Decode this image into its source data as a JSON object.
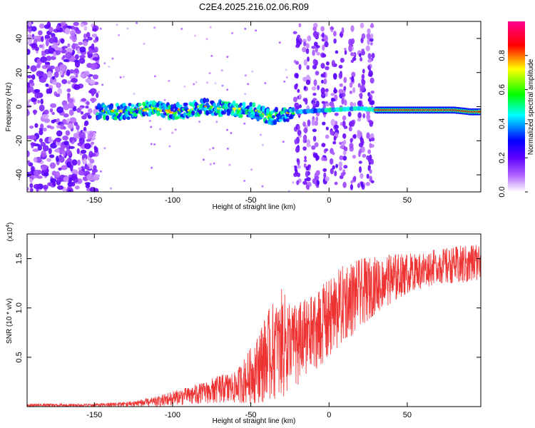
{
  "title": "C2E4.2025.216.02.06.R09",
  "chart_data": [
    {
      "type": "heatmap",
      "xlabel": "Height of straight line (km)",
      "ylabel": "Frequency (Hz)",
      "xlim": [
        -193,
        97
      ],
      "ylim": [
        -50,
        50
      ],
      "xticks": [
        -150,
        -100,
        -50,
        0,
        50
      ],
      "yticks": [
        -40,
        -20,
        0,
        20,
        40
      ],
      "colorbar": {
        "label": "Normalized spectral amplitude",
        "range": [
          0.0,
          1.0
        ],
        "ticks": [
          0.0,
          0.2,
          0.4,
          0.6,
          0.8
        ],
        "tick_labels": [
          "0.0",
          "0.2",
          "0.4",
          "0.6",
          "0.8"
        ],
        "colors": [
          "#ffffff",
          "#7f00ff",
          "#0000ff",
          "#00ffff",
          "#00ff00",
          "#ffff00",
          "#ff0000",
          "#ff0080"
        ]
      },
      "ridge": {
        "x": [
          -148,
          -130,
          -110,
          -100,
          -90,
          -80,
          -70,
          -60,
          -50,
          -40,
          -35,
          -30,
          -25,
          -20,
          0,
          20,
          30,
          50,
          70,
          80,
          90,
          97
        ],
        "y": [
          -3,
          -3,
          -1,
          -3,
          -2,
          0,
          -1,
          -2,
          -2,
          -5,
          -6,
          -4,
          -4,
          -3,
          -2,
          -1,
          -2,
          -2,
          -2,
          -2,
          -3,
          -3
        ]
      },
      "segments": [
        {
          "x": [
            -193,
            -148
          ],
          "pattern": "broadband noise"
        },
        {
          "x": [
            -148,
            -22
          ],
          "pattern": "noisy ridge"
        },
        {
          "x": [
            -22,
            30
          ],
          "pattern": "periodic stripes"
        },
        {
          "x": [
            30,
            97
          ],
          "pattern": "strong narrow ridge"
        }
      ]
    },
    {
      "type": "line",
      "xlabel": "Height of straight line (km)",
      "ylabel": "SNR (10 * v/v)",
      "scale_label": "(x10",
      "scale_exponent": "4",
      "xlim": [
        -193,
        97
      ],
      "ylim": [
        0,
        1.75
      ],
      "xticks": [
        -150,
        -100,
        -50,
        0,
        50
      ],
      "yticks": [
        0.5,
        1.0,
        1.5
      ],
      "ytick_labels": [
        "0.5",
        "1.0",
        "1.5"
      ],
      "series": [
        {
          "color": "#ee3333",
          "envelope": {
            "x": [
              -193,
              -150,
              -130,
              -110,
              -100,
              -90,
              -80,
              -70,
              -60,
              -50,
              -40,
              -30,
              -25,
              -20,
              -10,
              0,
              10,
              20,
              30,
              40,
              50,
              60,
              70,
              80,
              90,
              97
            ],
            "low": [
              0.0,
              0.0,
              0.0,
              0.0,
              0.01,
              0.02,
              0.03,
              0.04,
              0.04,
              0.03,
              0.05,
              0.08,
              0.15,
              0.2,
              0.35,
              0.5,
              0.65,
              0.8,
              0.95,
              1.05,
              1.15,
              1.2,
              1.25,
              1.25,
              1.25,
              1.3
            ],
            "high": [
              0.03,
              0.03,
              0.05,
              0.1,
              0.16,
              0.2,
              0.25,
              0.32,
              0.35,
              0.6,
              0.95,
              1.2,
              1.1,
              1.05,
              1.15,
              1.3,
              1.45,
              1.5,
              1.52,
              1.55,
              1.55,
              1.57,
              1.6,
              1.62,
              1.65,
              1.67
            ]
          }
        }
      ]
    }
  ]
}
